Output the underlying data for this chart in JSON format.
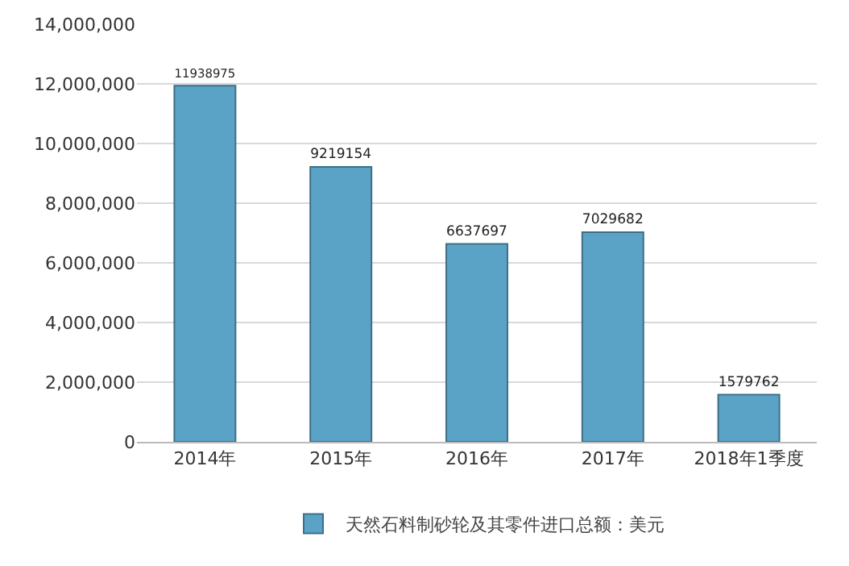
{
  "chart_data": {
    "type": "bar",
    "categories": [
      "2014年",
      "2015年",
      "2016年",
      "2017年",
      "2018年1季度"
    ],
    "series": [
      {
        "name": "天然石料制砂轮及其零件进口总额：美元",
        "color": "#5aa3c6",
        "values": [
          11938975,
          9219154,
          6637697,
          7029682,
          1579762
        ]
      }
    ],
    "ylim": [
      0,
      14000000
    ],
    "yticks": [
      0,
      {
        "value": 2000000,
        "label": "2,000,000"
      },
      {
        "value": 4000000,
        "label": "4,000,000"
      },
      {
        "value": 6000000,
        "label": "6,000,000"
      },
      {
        "value": 8000000,
        "label": "8,000,000"
      },
      {
        "value": 10000000,
        "label": "10,000,000"
      },
      {
        "value": 12000000,
        "label": "12,000,000"
      },
      {
        "value": 14000000,
        "label": "14,000,000"
      }
    ],
    "grid": "y",
    "legend": "bottom",
    "data_labels": true
  }
}
